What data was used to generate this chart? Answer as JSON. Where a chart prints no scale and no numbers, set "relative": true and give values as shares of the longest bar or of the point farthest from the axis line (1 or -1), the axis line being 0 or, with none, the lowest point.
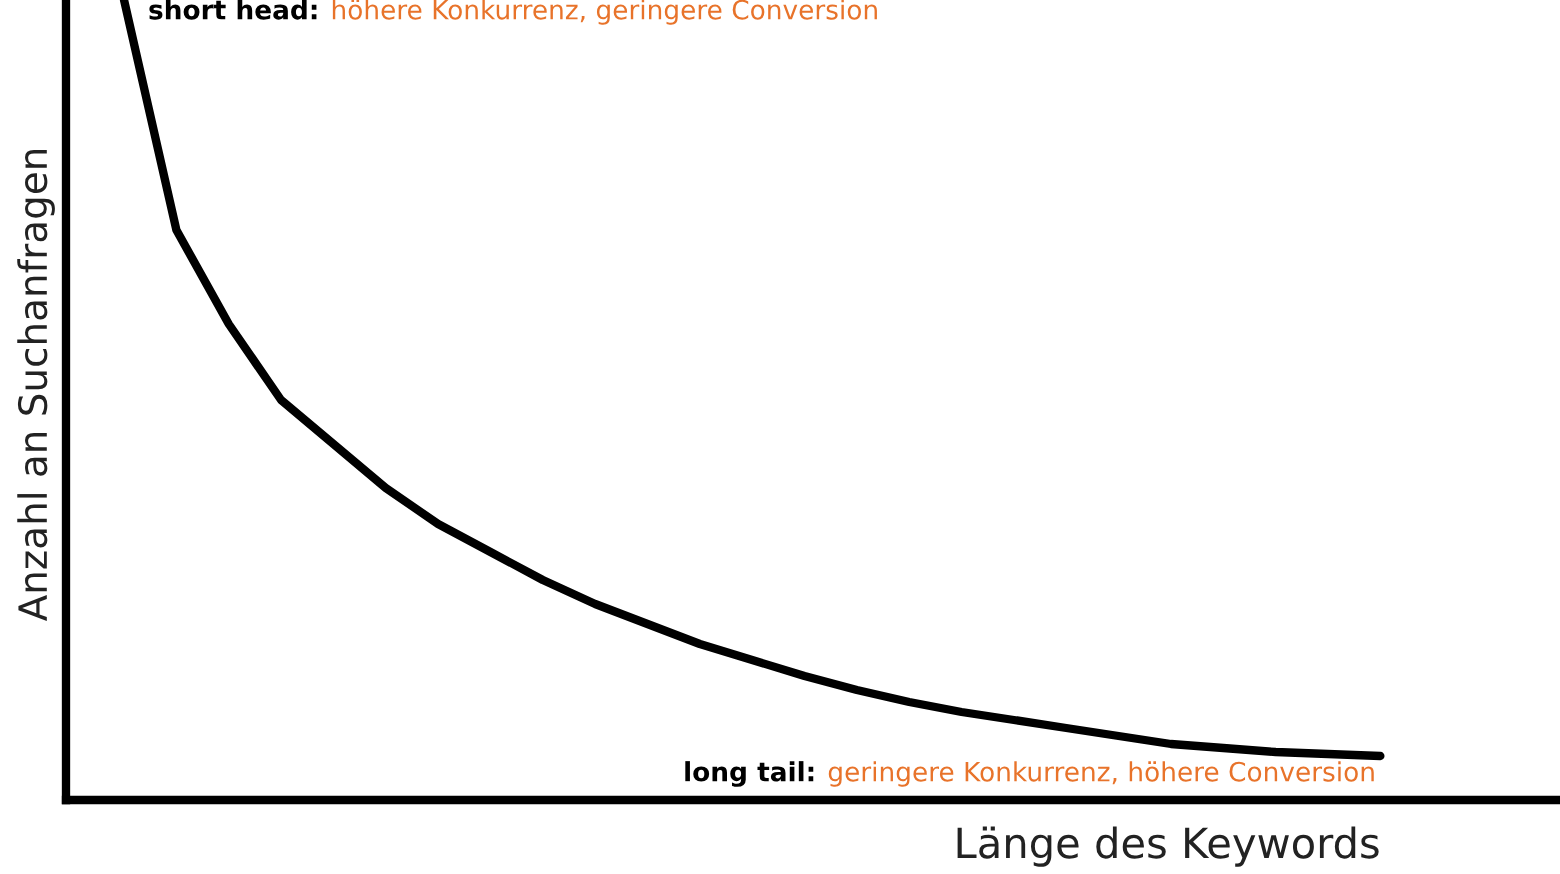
{
  "chart_data": {
    "type": "line",
    "relative": true,
    "xlabel": "Länge des Keywords",
    "ylabel": "Anzahl an Suchanfragen",
    "annotations": [
      "short head:",
      "höhere Konkurrenz, geringere Conversion",
      "long tail:",
      "geringere Konkurrenz, höhere Conversion"
    ],
    "categories": [
      null,
      null,
      null,
      null,
      null,
      null,
      null,
      null,
      null,
      null,
      null,
      null,
      null,
      null,
      null,
      null,
      null,
      null,
      null,
      null,
      null,
      null,
      null,
      null,
      null
    ],
    "series": [
      {
        "color": "#000000",
        "values": [
          1.0,
          0.7125,
          0.595,
          0.5,
          0.445,
          0.39,
          0.345,
          0.31,
          0.275,
          0.245,
          0.22,
          0.195,
          0.175,
          0.155,
          0.1375,
          0.1225,
          0.11,
          0.1,
          0.09,
          0.08,
          0.07,
          0.065,
          0.06,
          0.0575,
          0.055
        ]
      }
    ]
  }
}
